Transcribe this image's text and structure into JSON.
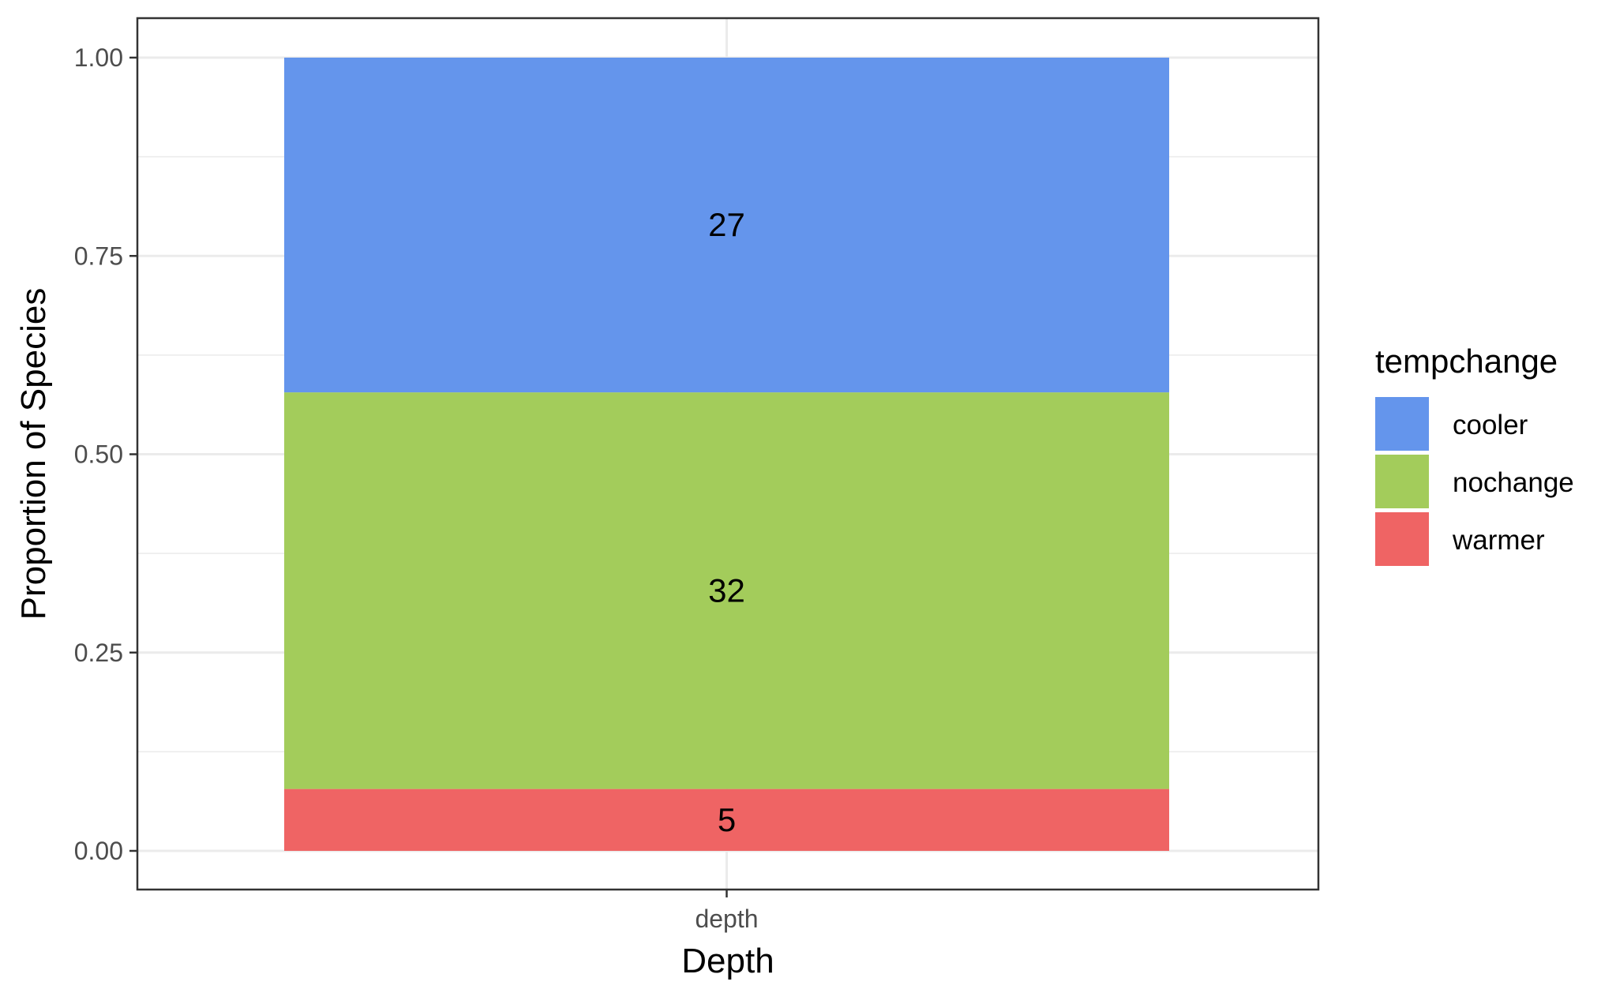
{
  "chart_data": {
    "type": "bar",
    "stacked": true,
    "normalized": true,
    "categories": [
      "depth"
    ],
    "series": [
      {
        "name": "warmer",
        "counts": [
          5
        ],
        "values": [
          0.078
        ],
        "color": "#EF6464"
      },
      {
        "name": "nochange",
        "counts": [
          32
        ],
        "values": [
          0.5
        ],
        "color": "#A3CC5B"
      },
      {
        "name": "cooler",
        "counts": [
          27
        ],
        "values": [
          0.422
        ],
        "color": "#6495EC"
      }
    ],
    "xlabel": "Depth",
    "ylabel": "Proportion of Species",
    "ylim": [
      0,
      1
    ],
    "yticks": [
      "0.00",
      "0.25",
      "0.50",
      "0.75",
      "1.00"
    ],
    "yticks_values": [
      0,
      0.25,
      0.5,
      0.75,
      1
    ],
    "grid": true,
    "legend": {
      "title": "tempchange",
      "position": "right",
      "order": [
        "cooler",
        "nochange",
        "warmer"
      ]
    },
    "panel_border_color": "#333333",
    "grid_color": "#EBEBEB"
  }
}
